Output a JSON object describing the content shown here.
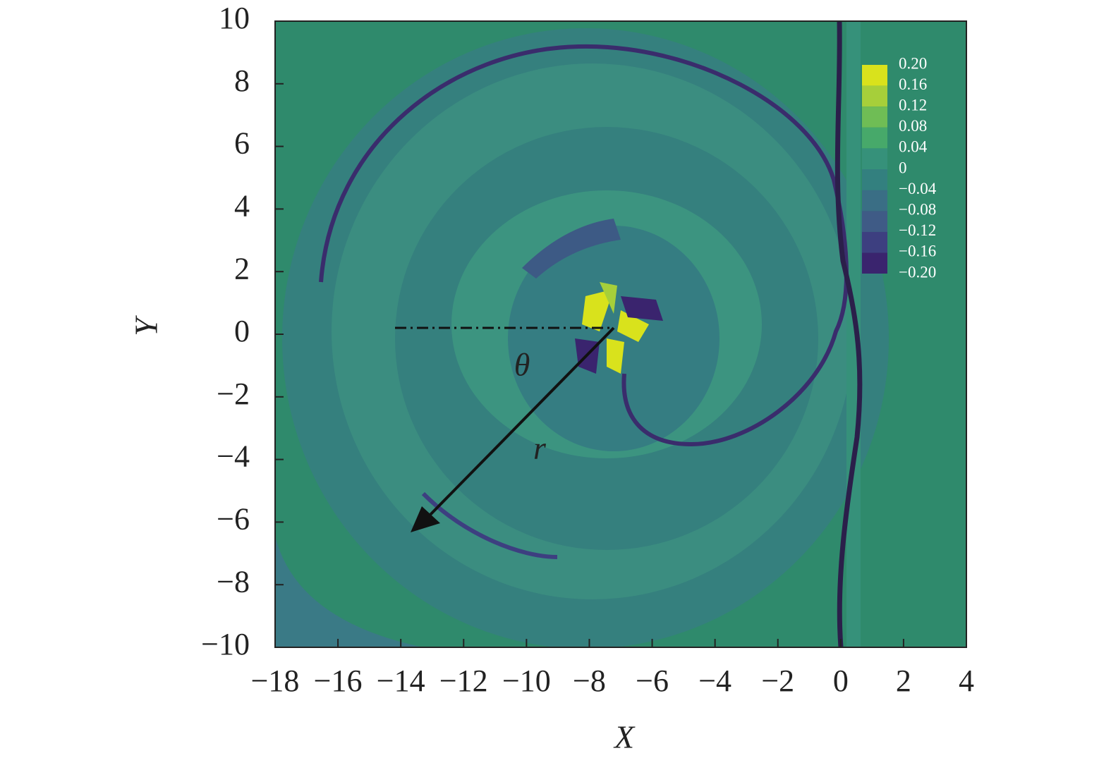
{
  "chart_data": {
    "type": "contour",
    "xlabel": "X",
    "ylabel": "Y",
    "xlim": [
      -18,
      4
    ],
    "ylim": [
      -10,
      10
    ],
    "xticks": [
      {
        "value": -18,
        "label": "−18"
      },
      {
        "value": -16,
        "label": "−16"
      },
      {
        "value": -14,
        "label": "−14"
      },
      {
        "value": -12,
        "label": "−12"
      },
      {
        "value": -10,
        "label": "−10"
      },
      {
        "value": -8,
        "label": "−8"
      },
      {
        "value": -6,
        "label": "−6"
      },
      {
        "value": -4,
        "label": "−4"
      },
      {
        "value": -2,
        "label": "−2"
      },
      0,
      2,
      4
    ],
    "yticks": [
      {
        "value": -10,
        "label": "−10"
      },
      {
        "value": -8,
        "label": "−8"
      },
      {
        "value": -6,
        "label": "−6"
      },
      {
        "value": -4,
        "label": "−4"
      },
      {
        "value": -2,
        "label": "−2"
      },
      0,
      2,
      4,
      6,
      8,
      10
    ],
    "levels": [
      {
        "value": 0.2,
        "label": "0.20"
      },
      0.16,
      0.12,
      0.08,
      0.04,
      0,
      {
        "value": -0.04,
        "label": "−0.04"
      },
      {
        "value": -0.08,
        "label": "−0.08"
      },
      {
        "value": -0.12,
        "label": "−0.12"
      },
      {
        "value": -0.16,
        "label": "−0.16"
      },
      {
        "value": -0.2,
        "label": "−0.20"
      }
    ],
    "level_colors": [
      "#d9e21c",
      "#a6cf3a",
      "#6fbd55",
      "#47a96a",
      "#36917a",
      "#33807f",
      "#3a6e85",
      "#3f5b86",
      "#3d3f80",
      "#3a246e"
    ],
    "annotations": [
      "θ",
      "r"
    ]
  }
}
